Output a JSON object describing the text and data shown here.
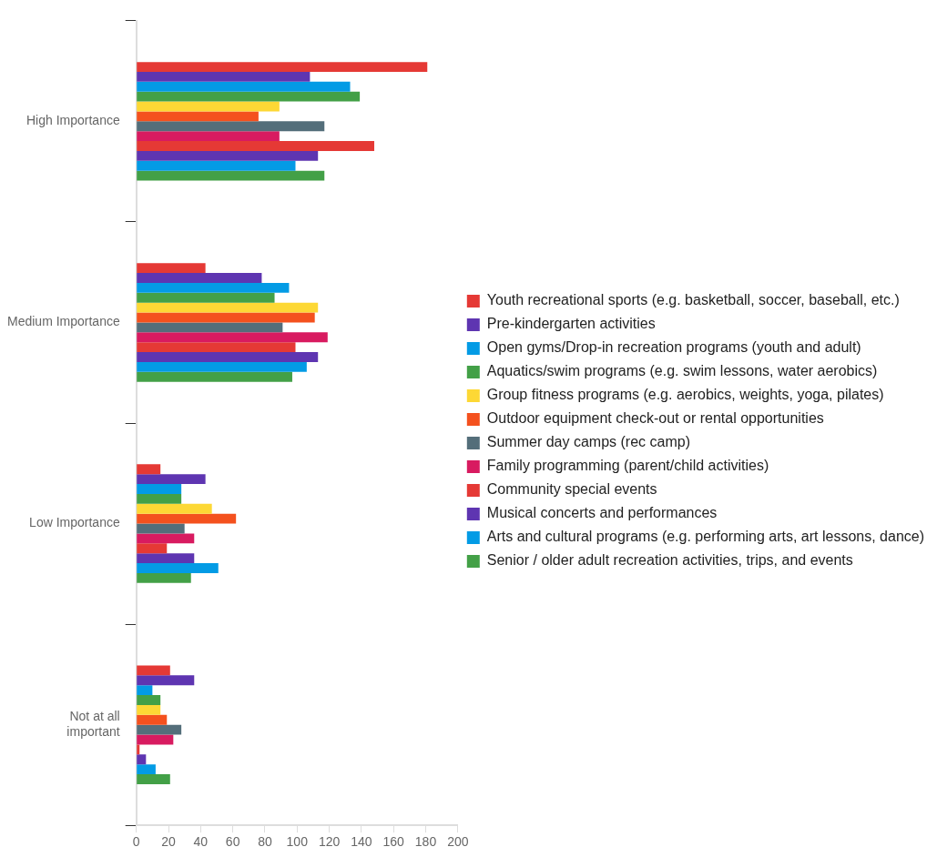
{
  "chart_data": {
    "type": "bar",
    "orientation": "horizontal",
    "categories": [
      "High Importance",
      "Medium Importance",
      "Low Importance",
      "Not at all important"
    ],
    "xlim": [
      0,
      200
    ],
    "xticks": [
      0,
      20,
      40,
      60,
      80,
      100,
      120,
      140,
      160,
      180,
      200
    ],
    "legend": "right",
    "series": [
      {
        "name": "Youth recreational sports (e.g. basketball, soccer, baseball, etc.)",
        "color": "#e53935",
        "values": [
          181,
          43,
          15,
          21
        ]
      },
      {
        "name": "Pre-kindergarten activities",
        "color": "#5e35b1",
        "values": [
          108,
          78,
          43,
          36
        ]
      },
      {
        "name": "Open gyms/Drop-in recreation programs (youth and adult)",
        "color": "#039be5",
        "values": [
          133,
          95,
          28,
          10
        ]
      },
      {
        "name": "Aquatics/swim programs (e.g. swim lessons, water aerobics)",
        "color": "#43a047",
        "values": [
          139,
          86,
          28,
          15
        ]
      },
      {
        "name": "Group fitness programs (e.g. aerobics, weights, yoga, pilates)",
        "color": "#fdd835",
        "values": [
          89,
          113,
          47,
          15
        ]
      },
      {
        "name": "Outdoor equipment check-out or rental opportunities",
        "color": "#f4511e",
        "values": [
          76,
          111,
          62,
          19
        ]
      },
      {
        "name": "Summer day camps (rec camp)",
        "color": "#546e7a",
        "values": [
          117,
          91,
          30,
          28
        ]
      },
      {
        "name": "Family programming (parent/child activities)",
        "color": "#d81b60",
        "values": [
          89,
          119,
          36,
          23
        ]
      },
      {
        "name": "Community special events",
        "color": "#e53935",
        "values": [
          148,
          99,
          19,
          2
        ]
      },
      {
        "name": "Musical concerts and performances",
        "color": "#5e35b1",
        "values": [
          113,
          113,
          36,
          6
        ]
      },
      {
        "name": "Arts and cultural programs (e.g. performing arts, art lessons, dance)",
        "color": "#039be5",
        "values": [
          99,
          106,
          51,
          12
        ]
      },
      {
        "name": "Senior / older adult recreation activities, trips, and events",
        "color": "#43a047",
        "values": [
          117,
          97,
          34,
          21
        ]
      }
    ]
  }
}
